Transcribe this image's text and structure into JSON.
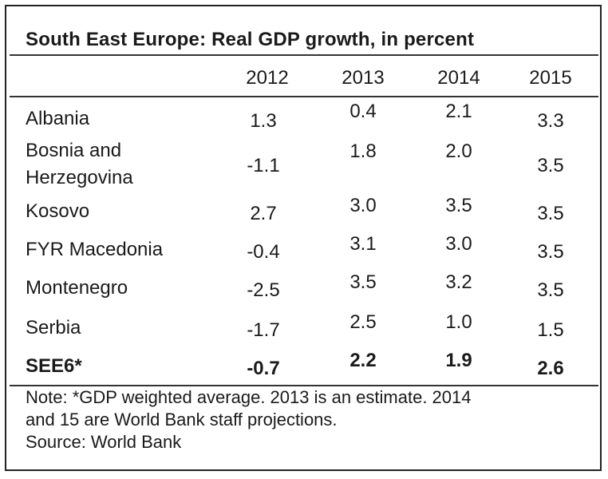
{
  "title": "South East Europe: Real GDP growth, in percent",
  "years": [
    "2012",
    "2013",
    "2014",
    "2015"
  ],
  "rows": [
    {
      "country": "Albania",
      "values": [
        "1.3",
        "0.4",
        "2.1",
        "3.3"
      ]
    },
    {
      "country": "Bosnia and Herzegovina",
      "country_line1": "Bosnia and",
      "country_line2": "Herzegovina",
      "values": [
        "-1.1",
        "1.8",
        "2.0",
        "3.5"
      ]
    },
    {
      "country": "Kosovo",
      "values": [
        "2.7",
        "3.0",
        "3.5",
        "3.5"
      ]
    },
    {
      "country": "FYR Macedonia",
      "values": [
        "-0.4",
        "3.1",
        "3.0",
        "3.5"
      ]
    },
    {
      "country": "Montenegro",
      "values": [
        "-2.5",
        "3.5",
        "3.2",
        "3.5"
      ]
    },
    {
      "country": "Serbia",
      "values": [
        "-1.7",
        "2.5",
        "1.0",
        "1.5"
      ]
    },
    {
      "country": "SEE6*",
      "values": [
        "-0.7",
        "2.2",
        "1.9",
        "2.6"
      ]
    }
  ],
  "note_line1": "Note: *GDP weighted average. 2013 is an estimate. 2014",
  "note_line2": "and 15 are World Bank staff projections.",
  "source": "Source: World Bank"
}
